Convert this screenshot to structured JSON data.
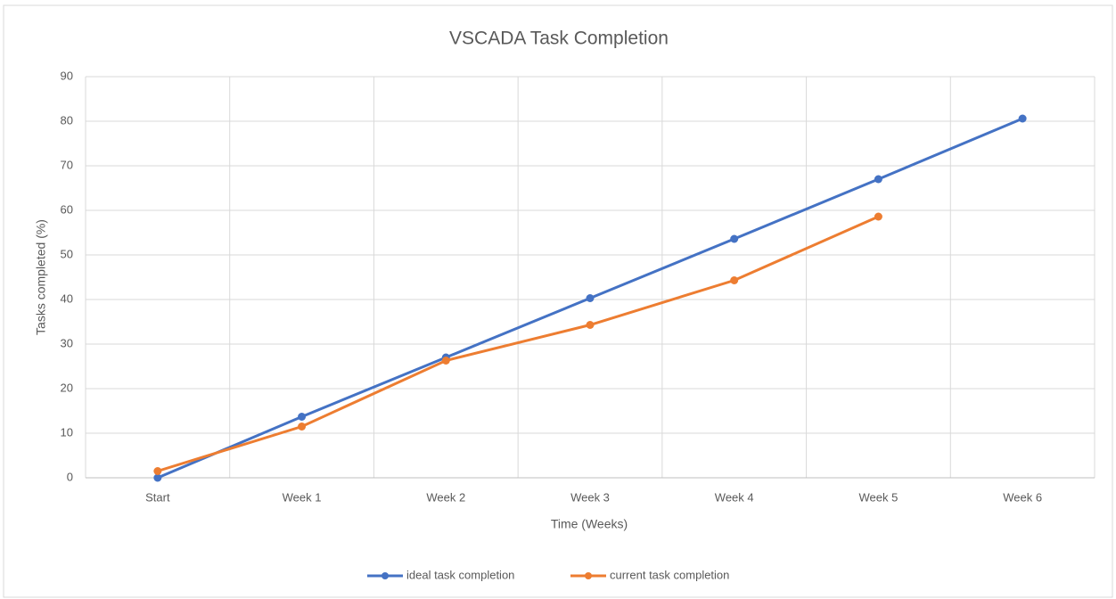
{
  "chart_data": {
    "type": "line",
    "title": "VSCADA Task Completion",
    "x_label": "Time (Weeks)",
    "y_label": "Tasks completed (%)",
    "categories": [
      "Start",
      "Week 1",
      "Week 2",
      "Week 3",
      "Week 4",
      "Week 5",
      "Week 6"
    ],
    "series": [
      {
        "name": "ideal task completion",
        "color": "#4472c4",
        "values": [
          0,
          13.7,
          27,
          40.3,
          53.6,
          67,
          80.6
        ]
      },
      {
        "name": "current task completion",
        "color": "#ed7d31",
        "values": [
          1.5,
          11.5,
          26.3,
          34.3,
          44.3,
          58.6,
          null
        ]
      }
    ],
    "ylim": [
      0,
      90
    ],
    "yticks": [
      0,
      10,
      20,
      30,
      40,
      50,
      60,
      70,
      80,
      90
    ],
    "grid": true,
    "legend": "bottom"
  }
}
